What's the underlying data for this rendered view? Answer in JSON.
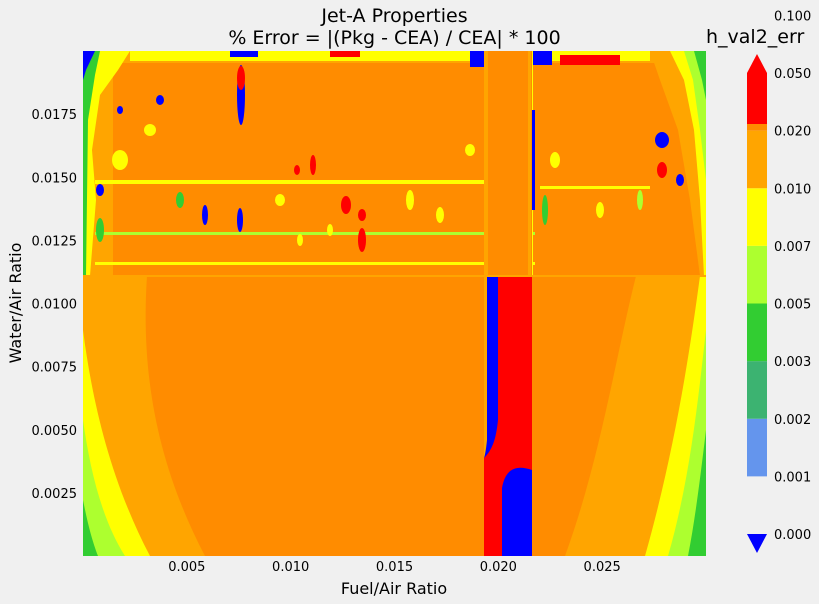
{
  "chart_data": {
    "type": "heatmap",
    "subtype": "filled-contour",
    "title_line1": "Jet-A Properties",
    "title_line2": "% Error = |(Pkg - CEA) / CEA| * 100",
    "xlabel": "Fuel/Air Ratio",
    "ylabel": "Water/Air Ratio",
    "xlim": [
      0.0,
      0.03
    ],
    "ylim": [
      0.0,
      0.02
    ],
    "x_ticks": [
      "0.005",
      "0.010",
      "0.015",
      "0.020",
      "0.025"
    ],
    "y_ticks": [
      "0.0025",
      "0.0050",
      "0.0075",
      "0.0100",
      "0.0125",
      "0.0150",
      "0.0175"
    ],
    "colorbar": {
      "title": "h_val2_err",
      "levels": [
        "0.000",
        "0.001",
        "0.002",
        "0.003",
        "0.005",
        "0.007",
        "0.010",
        "0.020",
        "0.050",
        "0.100"
      ],
      "colors": [
        "#0000ff",
        "#6495ed",
        "#3cb371",
        "#32cd32",
        "#adff2f",
        "#ffff00",
        "#ffa500",
        "#ff8c00",
        "#ff0000"
      ],
      "extend": "both"
    }
  }
}
